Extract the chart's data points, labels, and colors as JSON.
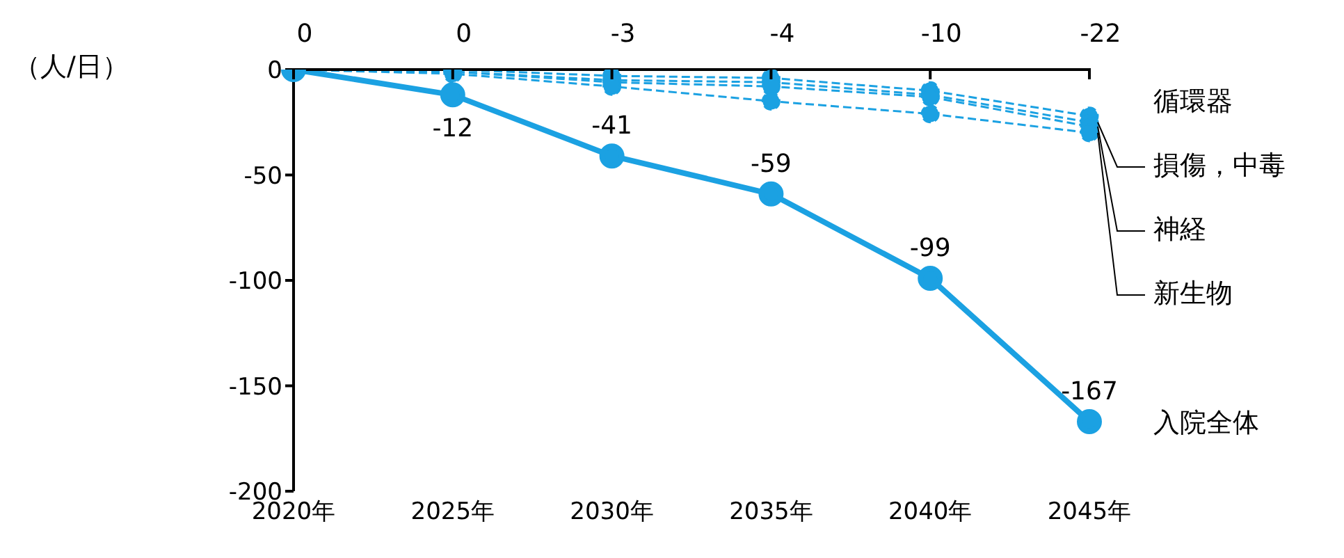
{
  "chart_data": {
    "type": "line",
    "ylabel": "（人/日）",
    "categories": [
      "2020年",
      "2025年",
      "2030年",
      "2035年",
      "2040年",
      "2045年"
    ],
    "ylim": [
      -200,
      0
    ],
    "yticks": [
      -200,
      -150,
      -100,
      -50,
      0
    ],
    "marker": "circle",
    "series": [
      {
        "name": "循環器",
        "color": "#1ba1e2",
        "line_style": "dashed",
        "values": [
          0,
          0,
          -3,
          -4,
          -10,
          -22
        ],
        "value_labels": [
          "0",
          "0",
          "-3",
          "-4",
          "-10",
          "-22"
        ]
      },
      {
        "name": "損傷，中毒",
        "color": "#1ba1e2",
        "line_style": "dashed",
        "values": [
          0,
          -1,
          -5,
          -6,
          -12,
          -25
        ]
      },
      {
        "name": "神経",
        "color": "#1ba1e2",
        "line_style": "dashed",
        "values": [
          0,
          -1,
          -6,
          -8,
          -13,
          -27
        ]
      },
      {
        "name": "新生物",
        "color": "#1ba1e2",
        "line_style": "dashed",
        "values": [
          0,
          -2,
          -8,
          -15,
          -21,
          -30
        ]
      },
      {
        "name": "入院全体",
        "color": "#1ba1e2",
        "line_style": "solid",
        "values": [
          0,
          -12,
          -41,
          -59,
          -99,
          -167
        ],
        "value_labels": [
          null,
          "-12",
          "-41",
          "-59",
          "-99",
          "-167"
        ]
      }
    ]
  }
}
